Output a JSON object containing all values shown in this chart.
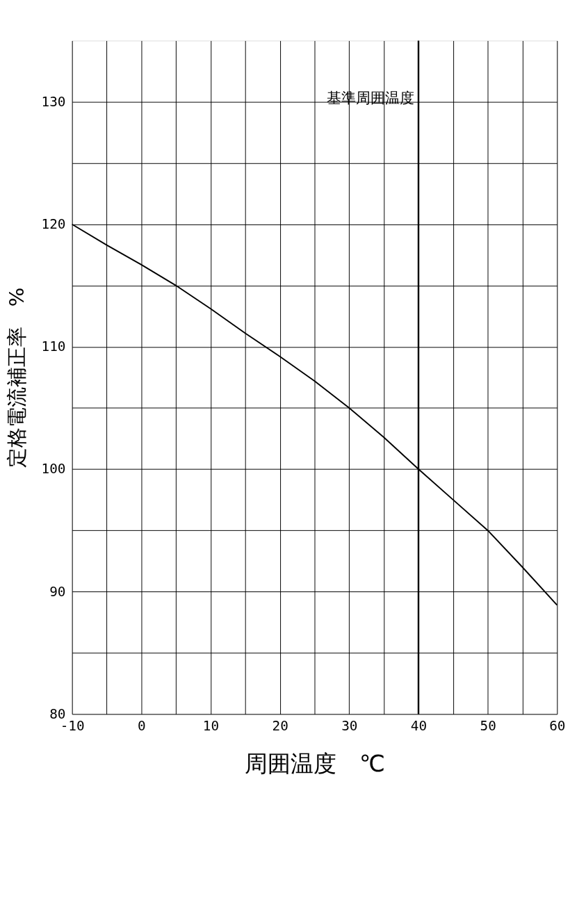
{
  "chart_data": {
    "type": "line",
    "xlabel": "周囲温度　℃",
    "ylabel": "定格電流補正率　%",
    "x": [
      -10,
      -5,
      0,
      5,
      10,
      15,
      20,
      25,
      30,
      35,
      40,
      45,
      50,
      55,
      60
    ],
    "series": [
      {
        "color": "#000000",
        "values": [
          120,
          118.3,
          116.7,
          115,
          113.1,
          111.1,
          109.2,
          107.2,
          105,
          102.6,
          100,
          97.5,
          95,
          92,
          88.9
        ]
      }
    ],
    "xlim": [
      -10,
      60
    ],
    "xticks": [
      -10,
      {
        "value": -5,
        "label": null
      },
      0,
      {
        "value": 5,
        "label": null
      },
      10,
      {
        "value": 15,
        "label": null
      },
      20,
      {
        "value": 25,
        "label": null
      },
      30,
      {
        "value": 35,
        "label": null
      },
      40,
      {
        "value": 45,
        "label": null
      },
      50,
      {
        "value": 55,
        "label": null
      },
      60
    ],
    "ylim": [
      80,
      135
    ],
    "yticks": [
      80,
      {
        "value": 85,
        "label": null
      },
      90,
      {
        "value": 95,
        "label": null
      },
      100,
      {
        "value": 105,
        "label": null
      },
      110,
      {
        "value": 115,
        "label": null
      },
      120,
      {
        "value": 125,
        "label": null
      },
      130
    ],
    "grid": true,
    "line_style": "solid",
    "ref_lines": [
      {
        "axis": "x",
        "value": 40,
        "label": "基準周囲温度"
      }
    ]
  }
}
